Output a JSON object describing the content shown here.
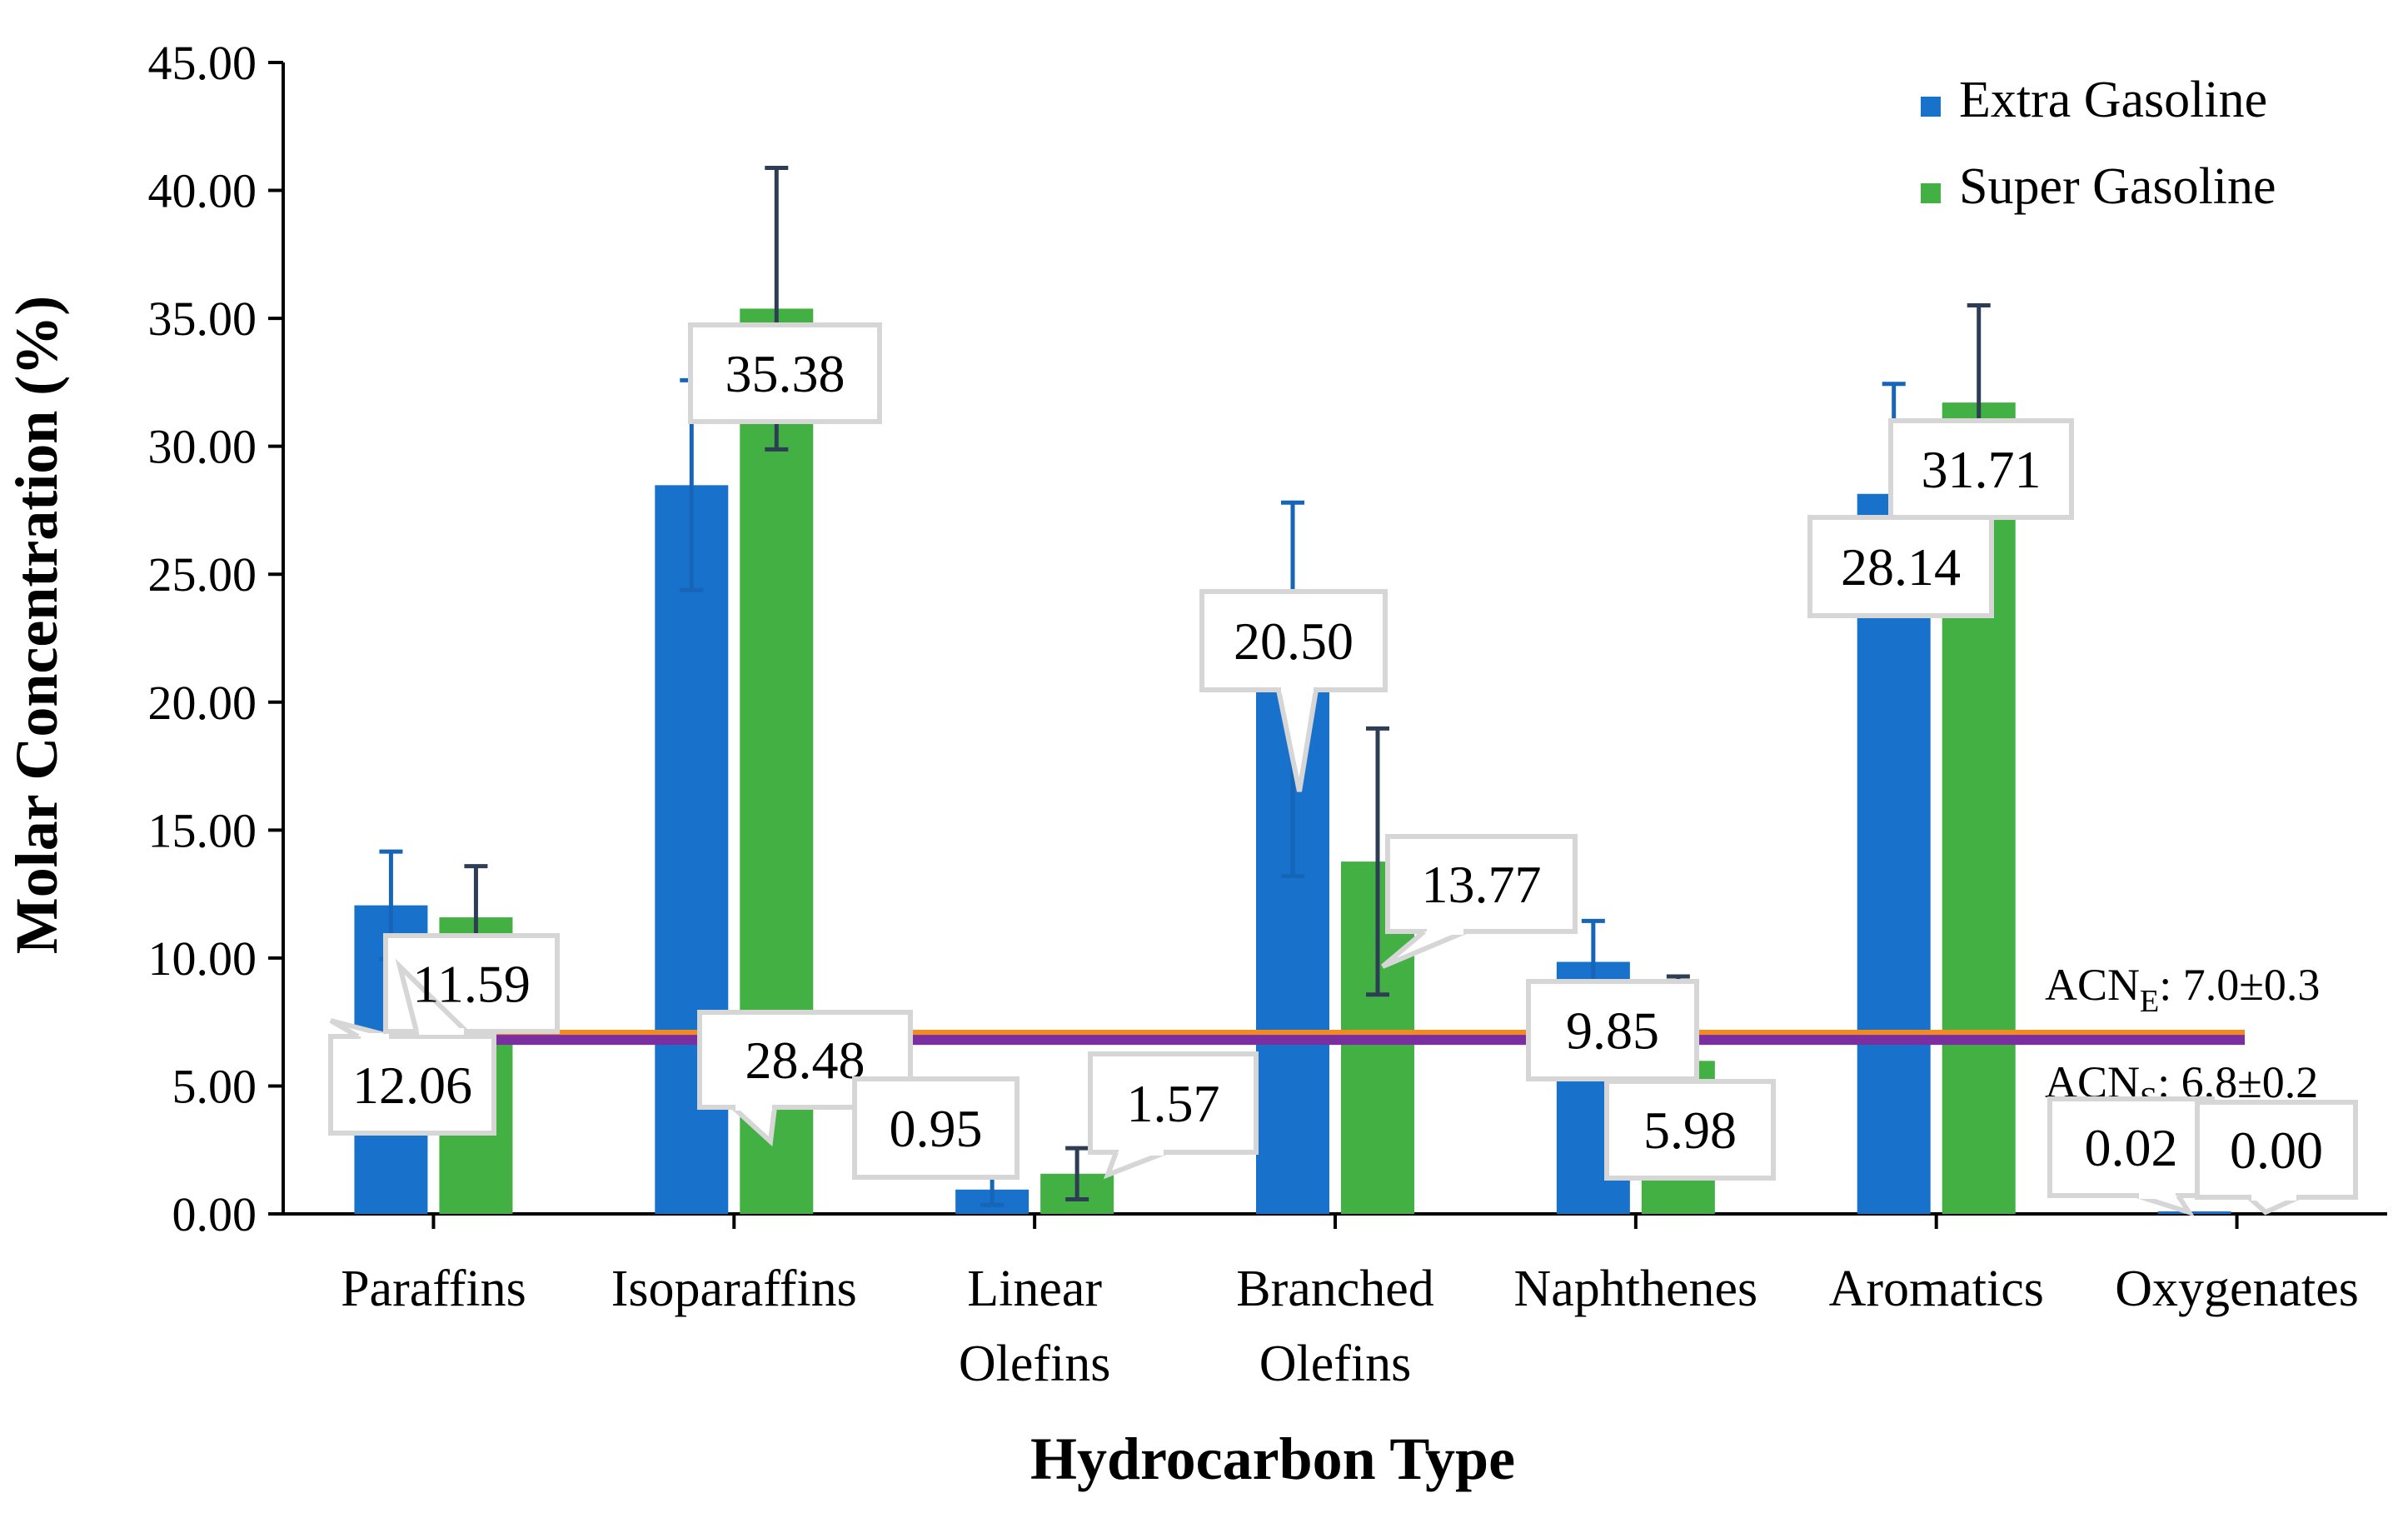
{
  "chart_data": {
    "type": "bar",
    "title": "",
    "xlabel": "Hydrocarbon Type",
    "ylabel": "Molar Concentration (%)",
    "ylim": [
      0,
      45
    ],
    "yticks": [
      "0.00",
      "5.00",
      "10.00",
      "15.00",
      "20.00",
      "25.00",
      "30.00",
      "35.00",
      "40.00",
      "45.00"
    ],
    "grid": false,
    "legend_position": "top-right",
    "categories": [
      [
        "Paraffins"
      ],
      [
        "Isoparaffins"
      ],
      [
        "Linear",
        "Olefins"
      ],
      [
        "Branched",
        "Olefins"
      ],
      [
        "Naphthenes"
      ],
      [
        "Aromatics"
      ],
      [
        "Oxygenates"
      ]
    ],
    "series": [
      {
        "name": "Extra Gasoline",
        "color": "#1872cb",
        "error_color": "#1665b8",
        "values": [
          12.06,
          28.48,
          0.95,
          20.5,
          9.85,
          28.14,
          0.02
        ],
        "errors": [
          2.1,
          4.1,
          0.6,
          7.3,
          1.6,
          4.3,
          0.0
        ],
        "labels": [
          "12.06",
          "28.48",
          "0.95",
          "20.50",
          "9.85",
          "28.14",
          "0.02"
        ]
      },
      {
        "name": "Super Gasoline",
        "color": "#43b043",
        "error_color": "#2d3e54",
        "values": [
          11.59,
          35.38,
          1.57,
          13.77,
          5.98,
          31.71,
          0.0
        ],
        "errors": [
          2.0,
          5.5,
          1.0,
          5.2,
          3.3,
          3.8,
          0.0
        ],
        "labels": [
          "11.59",
          "35.38",
          "1.57",
          "13.77",
          "5.98",
          "31.71",
          "0.00"
        ]
      }
    ],
    "reference_lines": [
      {
        "name": "ACN_E",
        "value": 7.0,
        "color": "#f08a24",
        "label_main": "ACN",
        "label_sub": "E",
        "label_rest": ": 7.0±0.3"
      },
      {
        "name": "ACN_S",
        "value": 6.8,
        "color": "#7a2ea0",
        "label_main": "ACN",
        "label_sub": "S",
        "label_rest": ": 6.8±0.2"
      }
    ]
  }
}
